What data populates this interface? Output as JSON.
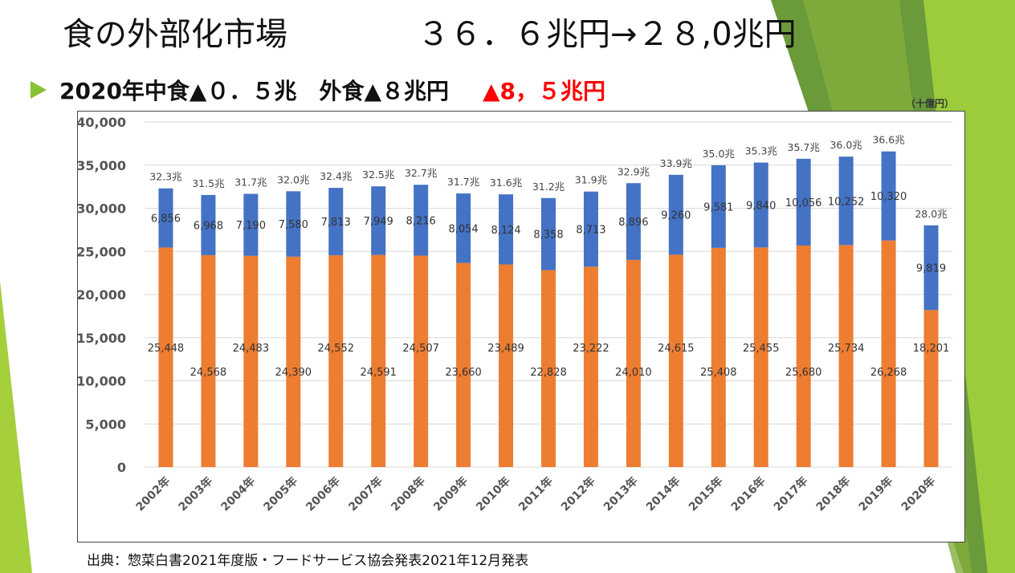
{
  "slide": {
    "title": "食の外部化市場",
    "title_value": "３６．６兆円→２８,0兆円",
    "headline": "2020年中食▲０．５兆　外食▲８兆円",
    "headline_red": "▲8，５兆円",
    "unit_note": "（十億円）",
    "source": "出典：惣菜白書2021年度版・フードサービス協会発表2021年12月発表"
  },
  "colors": {
    "accent_green": "#86c232",
    "series_bottom": "#ed7d31",
    "series_top": "#4472c4",
    "headline_red": "#ff0000"
  },
  "chart_data": {
    "type": "bar",
    "stacked": true,
    "unit": "（十億円）",
    "categories": [
      "2002年",
      "2003年",
      "2004年",
      "2005年",
      "2006年",
      "2007年",
      "2008年",
      "2009年",
      "2010年",
      "2011年",
      "2012年",
      "2013年",
      "2014年",
      "2015年",
      "2016年",
      "2017年",
      "2018年",
      "2019年",
      "2020年"
    ],
    "series": [
      {
        "name": "外食",
        "color": "#ed7d31",
        "values": [
          25448,
          24568,
          24483,
          24390,
          24552,
          24591,
          24507,
          23660,
          23489,
          22828,
          23222,
          24010,
          24615,
          25408,
          25455,
          25680,
          25734,
          26268,
          18201
        ],
        "labels": [
          "25,448",
          "24,568",
          "24,483",
          "24,390",
          "24,552",
          "24,591",
          "24,507",
          "23,660",
          "23,489",
          "22,828",
          "23,222",
          "24,010",
          "24,615",
          "25,408",
          "25,455",
          "25,680",
          "25,734",
          "26,268",
          "18,201"
        ]
      },
      {
        "name": "中食",
        "color": "#4472c4",
        "values": [
          6856,
          6968,
          7190,
          7580,
          7813,
          7949,
          8216,
          8054,
          8124,
          8358,
          8713,
          8896,
          9260,
          9581,
          9840,
          10056,
          10252,
          10320,
          9819
        ],
        "labels": [
          "6,856",
          "6,968",
          "7,190",
          "7,580",
          "7,813",
          "7,949",
          "8,216",
          "8,054",
          "8,124",
          "8,358",
          "8,713",
          "8,896",
          "9,260",
          "9,581",
          "9,840",
          "10,056",
          "10,252",
          "10,320",
          "9,819"
        ]
      }
    ],
    "totals": [
      "32.3兆",
      "31.5兆",
      "31.7兆",
      "32.0兆",
      "32.4兆",
      "32.5兆",
      "32.7兆",
      "31.7兆",
      "31.6兆",
      "31.2兆",
      "31.9兆",
      "32.9兆",
      "33.9兆",
      "35.0兆",
      "35.3兆",
      "35.7兆",
      "36.0兆",
      "36.6兆",
      "28.0兆"
    ],
    "ylim": [
      0,
      40000
    ],
    "yticks": [
      0,
      5000,
      10000,
      15000,
      20000,
      25000,
      30000,
      35000,
      40000
    ],
    "ytick_labels": [
      "0",
      "5,000",
      "10,000",
      "15,000",
      "20,000",
      "25,000",
      "30,000",
      "35,000",
      "40,000"
    ],
    "grid": true
  }
}
